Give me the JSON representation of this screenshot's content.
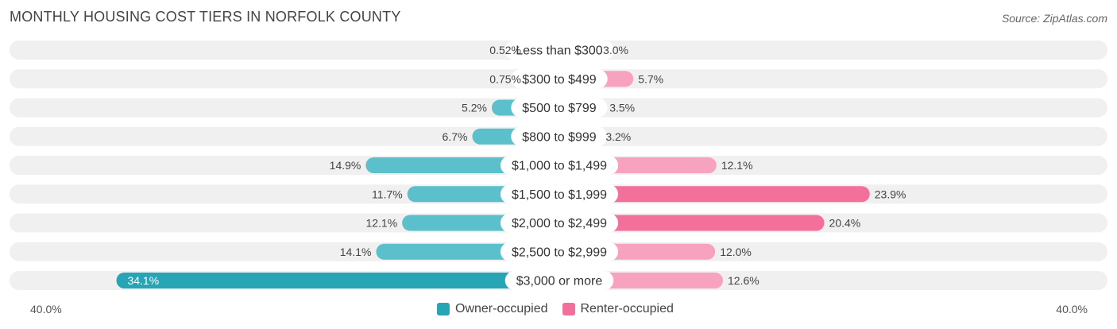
{
  "header": {
    "title": "MONTHLY HOUSING COST TIERS IN NORFOLK COUNTY",
    "source": "Source: ZipAtlas.com"
  },
  "colors": {
    "owner": "#5bbfcc",
    "owner_strong": "#27a5b5",
    "renter": "#f7a3bf",
    "renter_strong": "#f2709a",
    "track": "#f0f0f0"
  },
  "chart_data": {
    "type": "bar",
    "orientation": "horizontal-diverging",
    "title": "MONTHLY HOUSING COST TIERS IN NORFOLK COUNTY",
    "categories": [
      "Less than $300",
      "$300 to $499",
      "$500 to $799",
      "$800 to $999",
      "$1,000 to $1,499",
      "$1,500 to $1,999",
      "$2,000 to $2,499",
      "$2,500 to $2,999",
      "$3,000 or more"
    ],
    "series": [
      {
        "name": "Owner-occupied",
        "values": [
          0.52,
          0.75,
          5.2,
          6.7,
          14.9,
          11.7,
          12.1,
          14.1,
          34.1
        ],
        "labels": [
          "0.52%",
          "0.75%",
          "5.2%",
          "6.7%",
          "14.9%",
          "11.7%",
          "12.1%",
          "14.1%",
          "34.1%"
        ]
      },
      {
        "name": "Renter-occupied",
        "values": [
          3.0,
          5.7,
          3.5,
          3.2,
          12.1,
          23.9,
          20.4,
          12.0,
          12.6
        ],
        "labels": [
          "3.0%",
          "5.7%",
          "3.5%",
          "3.2%",
          "12.1%",
          "23.9%",
          "20.4%",
          "12.0%",
          "12.6%"
        ]
      }
    ],
    "xlim": [
      -40,
      40
    ],
    "axis_labels": {
      "left": "40.0%",
      "right": "40.0%"
    },
    "legend": [
      "Owner-occupied",
      "Renter-occupied"
    ],
    "legend_position": "bottom-center"
  }
}
